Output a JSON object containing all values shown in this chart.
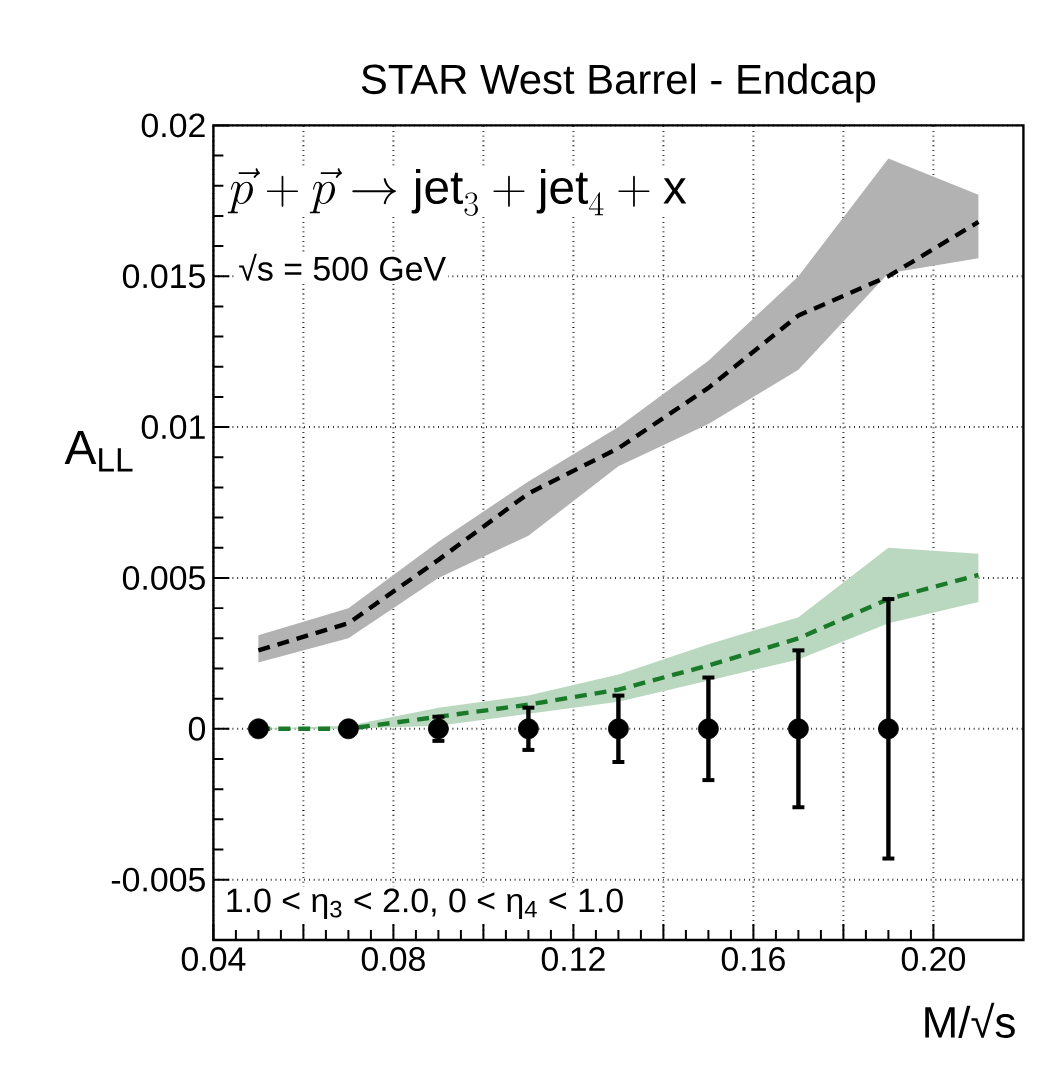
{
  "chart_data": {
    "type": "line",
    "title": "STAR West Barrel - Endcap",
    "xlabel": "M/√s",
    "ylabel": "A$_{LL}$",
    "annotations": [
      "\\vec{p}+\\vec{p}\\rightarrow \\mathrm{jet}_{3}+\\mathrm{jet}_{4}+\\mathrm{x}",
      "√s = 500 GeV",
      "1.0 < η$_{3}$ < 2.0, 0 < η$_{4}$ < 1.0"
    ],
    "xlim": [
      0.04,
      0.22
    ],
    "ylim": [
      -0.007,
      0.02
    ],
    "xticks": [
      0.04,
      {
        "value": 0.06,
        "label": null
      },
      0.08,
      {
        "value": 0.1,
        "label": null
      },
      0.12,
      {
        "value": 0.14,
        "label": null
      },
      0.16,
      {
        "value": 0.18,
        "label": null
      },
      {
        "value": 0.2,
        "label": "0.20"
      }
    ],
    "yticks": [
      -0.005,
      0,
      0.005,
      0.01,
      0.015,
      0.02
    ],
    "grid": true,
    "series": [
      {
        "color": "#000000",
        "line_style": "dashed",
        "x": [
          0.05,
          0.07,
          0.09,
          0.11,
          0.13,
          0.15,
          0.17,
          0.19,
          0.21
        ],
        "values": [
          0.0026,
          0.0035,
          0.0056,
          0.0078,
          0.0093,
          0.0113,
          0.0137,
          0.015,
          0.0168
        ],
        "lower": [
          0.0022,
          0.003,
          0.005,
          0.0064,
          0.0087,
          0.0101,
          0.0119,
          0.0151,
          0.0156
        ],
        "upper": [
          0.0031,
          0.004,
          0.0062,
          0.0082,
          0.01,
          0.0122,
          0.015,
          0.0189,
          0.0177
        ]
      },
      {
        "color": "#1a7a2a",
        "line_style": "dashed",
        "x": [
          0.05,
          0.07,
          0.09,
          0.11,
          0.13,
          0.15,
          0.17,
          0.19,
          0.21
        ],
        "values": [
          0,
          0,
          0.0004,
          0.0008,
          0.0013,
          0.0021,
          0.003,
          0.0043,
          0.0051
        ],
        "lower": [
          0,
          0,
          0.0001,
          0.0005,
          0.0009,
          0.0016,
          0.0023,
          0.0035,
          0.0042
        ],
        "upper": [
          0,
          0.0001,
          0.0007,
          0.0011,
          0.0018,
          0.0028,
          0.0037,
          0.006,
          0.0058
        ]
      },
      {
        "type": "scatter",
        "color": "#000000",
        "marker": "circle",
        "x": [
          0.05,
          0.07,
          0.09,
          0.11,
          0.13,
          0.15,
          0.17,
          0.19
        ],
        "values": [
          0,
          0,
          0,
          0,
          0,
          0,
          0,
          0
        ],
        "errors": [
          null,
          null,
          0.0004,
          0.0007,
          0.0011,
          0.0017,
          0.0026,
          0.0043
        ]
      }
    ]
  }
}
